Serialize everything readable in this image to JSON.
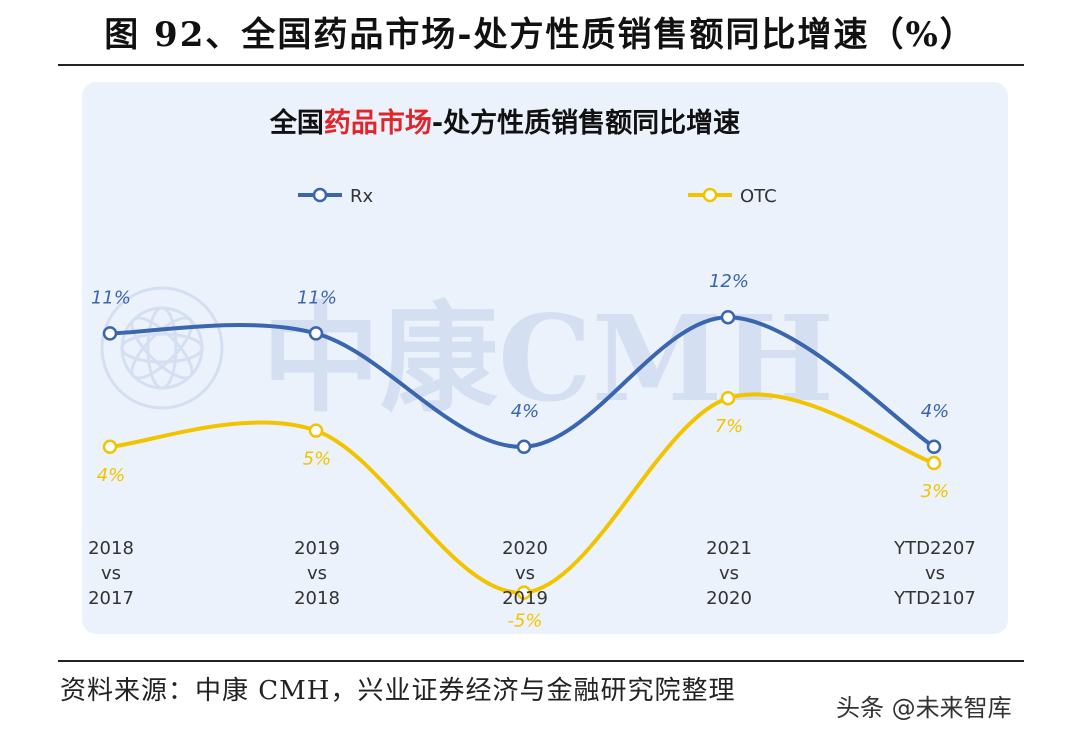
{
  "figure": {
    "title": "图 92、全国药品市场-处方性质销售额同比增速（%）",
    "source": "资料来源：中康 CMH，兴业证券经济与金融研究院整理",
    "watermark": "头条 @未来智库"
  },
  "chart_data": {
    "type": "line",
    "title_prefix": "全国",
    "title_highlight": "药品市场",
    "title_suffix": "-处方性质销售额同比增速",
    "categories": [
      [
        "2018",
        "vs",
        "2017"
      ],
      [
        "2019",
        "vs",
        "2018"
      ],
      [
        "2020",
        "vs",
        "2019"
      ],
      [
        "2021",
        "vs",
        "2020"
      ],
      [
        "YTD2207",
        "vs",
        "YTD2107"
      ]
    ],
    "series": [
      {
        "name": "Rx",
        "values": [
          11,
          11,
          4,
          12,
          4
        ],
        "labels": [
          "11%",
          "11%",
          "4%",
          "12%",
          "4%"
        ],
        "color": "#3a65b0"
      },
      {
        "name": "OTC",
        "values": [
          4,
          5,
          -5,
          7,
          3
        ],
        "labels": [
          "4%",
          "5%",
          "-5%",
          "7%",
          "3%"
        ],
        "color": "#f2c400"
      }
    ],
    "smooth": true,
    "ylim": [
      -6,
      13
    ],
    "grid": false,
    "legend_position": "top",
    "colors": {
      "title_highlight": "#e0262b",
      "panel_background": "#ecf2fb"
    },
    "background_watermark": "中康CMH"
  }
}
